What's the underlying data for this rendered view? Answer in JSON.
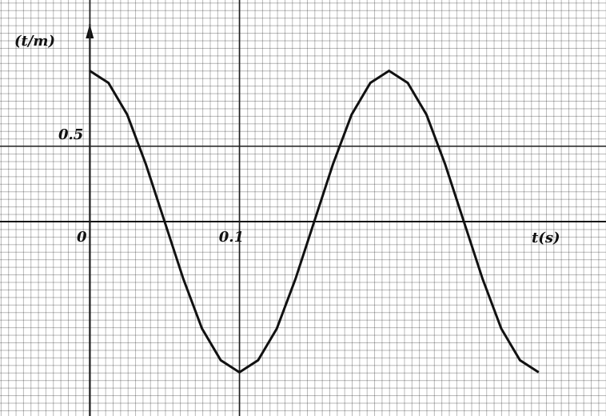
{
  "chart_data": {
    "type": "line",
    "y_label": "(t/m)",
    "x_label": "t(s)",
    "x": [
      0,
      0.0125,
      0.025,
      0.0375,
      0.05,
      0.0625,
      0.075,
      0.0875,
      0.1,
      0.1125,
      0.125,
      0.1375,
      0.15,
      0.1625,
      0.175,
      0.1875,
      0.2,
      0.2125,
      0.225,
      0.2375,
      0.25,
      0.2625,
      0.275,
      0.2875,
      0.3
    ],
    "series": [
      {
        "color": "#111111",
        "values": [
          1,
          0.92,
          0.71,
          0.38,
          0,
          -0.38,
          -0.71,
          -0.92,
          -1,
          -0.92,
          -0.71,
          -0.38,
          0,
          0.38,
          0.71,
          0.92,
          1,
          0.92,
          0.71,
          0.38,
          0,
          -0.38,
          -0.71,
          -0.92,
          -1
        ]
      }
    ],
    "xlim": [
      -0.06,
      0.345
    ],
    "ylim": [
      -1.29,
      1.47
    ],
    "xticks": [
      0,
      0.1
    ],
    "yticks": [
      0.5
    ],
    "grid": true
  }
}
